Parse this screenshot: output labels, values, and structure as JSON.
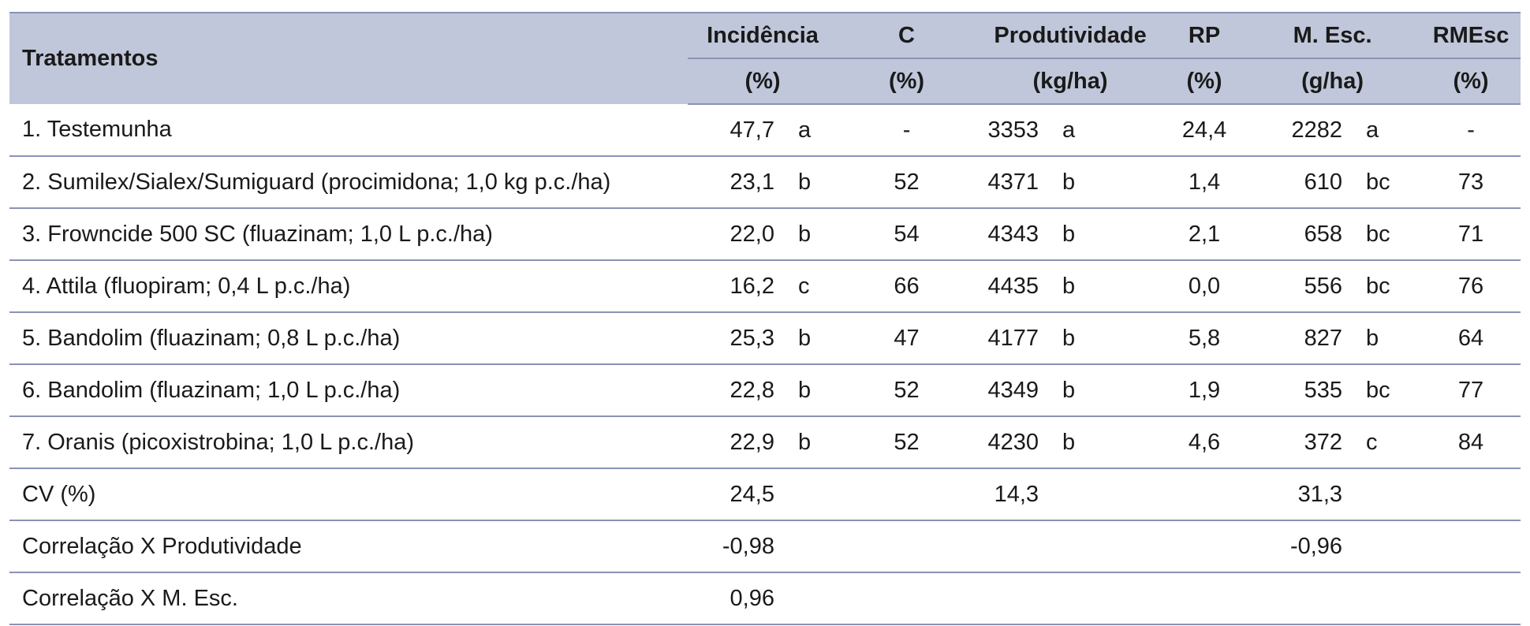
{
  "headers": {
    "tratamentos": "Tratamentos",
    "incidencia": "Incidência",
    "incidencia_unit": "(%)",
    "c": "C",
    "c_unit": "(%)",
    "produtividade": "Produtividade",
    "produtividade_unit": "(kg/ha)",
    "rp": "RP",
    "rp_unit": "(%)",
    "mesc": "M. Esc.",
    "mesc_unit": "(g/ha)",
    "rmesc": "RMEsc",
    "rmesc_unit": "(%)"
  },
  "rows": [
    {
      "name": "1. Testemunha",
      "inc": "47,7",
      "inc_l": "a",
      "c": "-",
      "prod": "3353",
      "prod_l": "a",
      "rp": "24,4",
      "mesc": "2282",
      "mesc_l": "a",
      "rmesc": "-"
    },
    {
      "name": "2. Sumilex/Sialex/Sumiguard (procimidona; 1,0 kg p.c./ha)",
      "inc": "23,1",
      "inc_l": "b",
      "c": "52",
      "prod": "4371",
      "prod_l": "b",
      "rp": "1,4",
      "mesc": "610",
      "mesc_l": "bc",
      "rmesc": "73"
    },
    {
      "name": "3. Frowncide 500 SC (fluazinam; 1,0 L p.c./ha)",
      "inc": "22,0",
      "inc_l": "b",
      "c": "54",
      "prod": "4343",
      "prod_l": "b",
      "rp": "2,1",
      "mesc": "658",
      "mesc_l": "bc",
      "rmesc": "71"
    },
    {
      "name": "4. Attila (fluopiram; 0,4 L p.c./ha)",
      "inc": "16,2",
      "inc_l": "c",
      "c": "66",
      "prod": "4435",
      "prod_l": "b",
      "rp": "0,0",
      "mesc": "556",
      "mesc_l": "bc",
      "rmesc": "76"
    },
    {
      "name": "5. Bandolim (fluazinam; 0,8 L p.c./ha)",
      "inc": "25,3",
      "inc_l": "b",
      "c": "47",
      "prod": "4177",
      "prod_l": "b",
      "rp": "5,8",
      "mesc": "827",
      "mesc_l": "b",
      "rmesc": "64"
    },
    {
      "name": "6. Bandolim (fluazinam; 1,0 L p.c./ha)",
      "inc": "22,8",
      "inc_l": "b",
      "c": "52",
      "prod": "4349",
      "prod_l": "b",
      "rp": "1,9",
      "mesc": "535",
      "mesc_l": "bc",
      "rmesc": "77"
    },
    {
      "name": "7. Oranis (picoxistrobina; 1,0 L p.c./ha)",
      "inc": "22,9",
      "inc_l": "b",
      "c": "52",
      "prod": "4230",
      "prod_l": "b",
      "rp": "4,6",
      "mesc": "372",
      "mesc_l": "c",
      "rmesc": "84"
    },
    {
      "name": "CV (%)",
      "inc": "24,5",
      "inc_l": "",
      "c": "",
      "prod": "14,3",
      "prod_l": "",
      "rp": "",
      "mesc": "31,3",
      "mesc_l": "",
      "rmesc": ""
    },
    {
      "name": "Correlação X Produtividade",
      "inc": "-0,98",
      "inc_l": "",
      "c": "",
      "prod": "",
      "prod_l": "",
      "rp": "",
      "mesc": "-0,96",
      "mesc_l": "",
      "rmesc": ""
    },
    {
      "name": "Correlação X M. Esc.",
      "inc": "0,96",
      "inc_l": "",
      "c": "",
      "prod": "",
      "prod_l": "",
      "rp": "",
      "mesc": "",
      "mesc_l": "",
      "rmesc": ""
    }
  ],
  "colors": {
    "header_bg": "#c0c7da",
    "rule": "#8a93b5"
  }
}
